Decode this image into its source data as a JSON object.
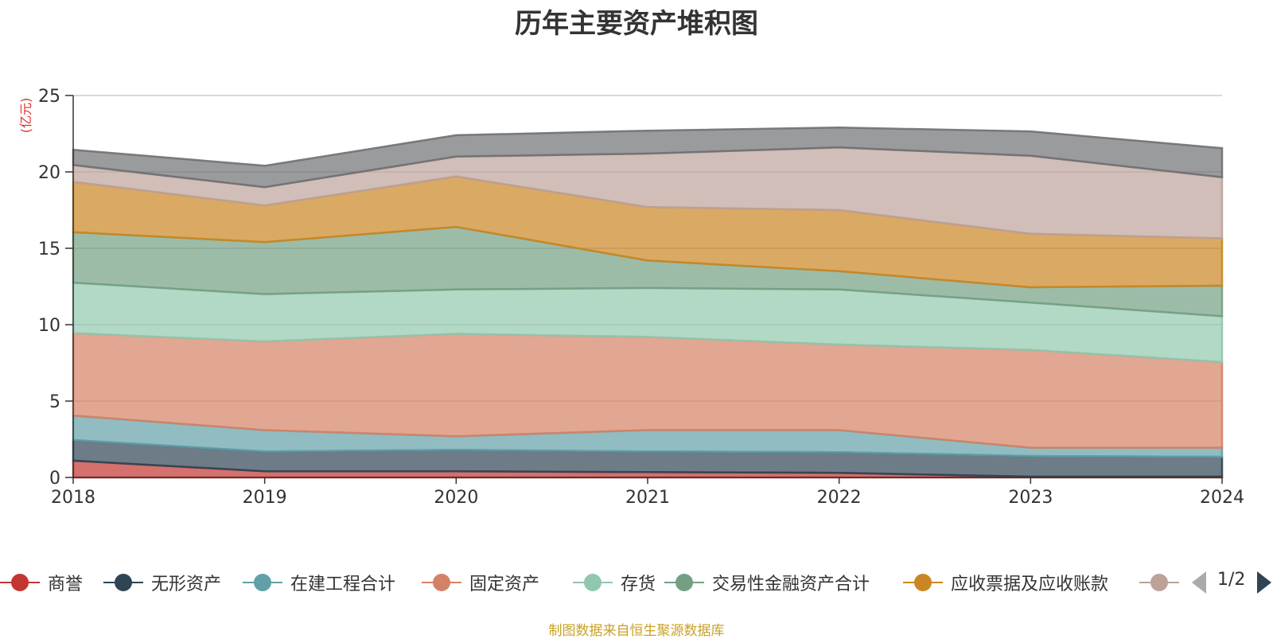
{
  "chart_data": {
    "type": "area",
    "title": "历年主要资产堆积图",
    "ylabel": "(亿元)",
    "xlabel": "",
    "x": [
      "2018",
      "2019",
      "2020",
      "2021",
      "2022",
      "2023",
      "2024"
    ],
    "ylim": [
      0,
      25
    ],
    "yticks": [
      0,
      5,
      10,
      15,
      20,
      25
    ],
    "stacked": true,
    "grid": true,
    "legend_position": "bottom",
    "series": [
      {
        "name": "商誉",
        "color": "#c23531",
        "values": [
          1.1,
          0.4,
          0.4,
          0.35,
          0.3,
          0.05,
          0.05
        ]
      },
      {
        "name": "无形资产",
        "color": "#2f4554",
        "values": [
          1.35,
          1.3,
          1.4,
          1.35,
          1.35,
          1.35,
          1.3
        ]
      },
      {
        "name": "在建工程合计",
        "color": "#61a0a8",
        "values": [
          1.6,
          1.4,
          0.9,
          1.4,
          1.45,
          0.55,
          0.6
        ]
      },
      {
        "name": "固定资产",
        "color": "#d48265",
        "values": [
          5.4,
          5.8,
          6.7,
          6.1,
          5.6,
          6.4,
          5.6
        ]
      },
      {
        "name": "存货",
        "color": "#91c7ae",
        "values": [
          3.3,
          3.1,
          2.9,
          3.2,
          3.6,
          3.1,
          3.0
        ]
      },
      {
        "name": "交易性金融资产合计",
        "color": "#749f83",
        "values": [
          3.3,
          3.4,
          4.1,
          1.8,
          1.2,
          1.0,
          2.0
        ]
      },
      {
        "name": "应收票据及应收账款",
        "color": "#ca8622",
        "values": [
          3.3,
          2.4,
          3.3,
          3.5,
          4.0,
          3.5,
          3.1
        ]
      },
      {
        "name": "",
        "color": "#bda29a",
        "values": [
          1.1,
          1.2,
          1.3,
          3.5,
          4.1,
          5.1,
          4.0
        ]
      },
      {
        "name": "",
        "color": "#6e7074",
        "values": [
          1.0,
          1.4,
          1.4,
          1.5,
          1.3,
          1.6,
          1.9
        ]
      }
    ]
  },
  "legend": {
    "page_indicator": "1/2",
    "visible_items": 8
  },
  "source_note": "制图数据来自恒生聚源数据库"
}
